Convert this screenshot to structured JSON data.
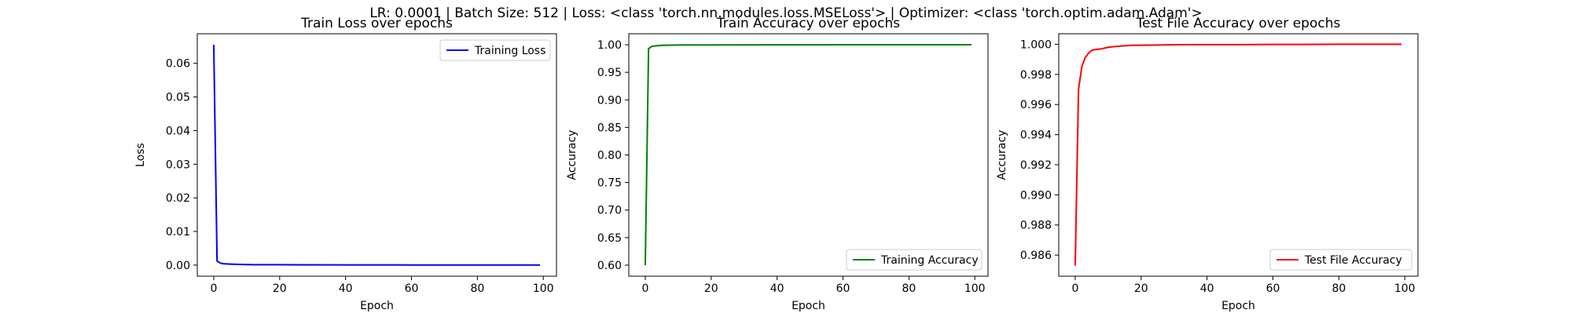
{
  "figure": {
    "suptitle": "LR: 0.0001 | Batch Size: 512 | Loss: <class 'torch.nn.modules.loss.MSELoss'> | Optimizer: <class 'torch.optim.adam.Adam'>"
  },
  "chart_data": [
    {
      "type": "line",
      "title": "Train Loss over epochs",
      "xlabel": "Epoch",
      "ylabel": "Loss",
      "xlim": [
        -5,
        104
      ],
      "ylim": [
        -0.0033,
        0.0688
      ],
      "xticks": [
        0,
        20,
        40,
        60,
        80,
        100
      ],
      "xtick_labels": [
        "0",
        "20",
        "40",
        "60",
        "80",
        "100"
      ],
      "yticks": [
        0,
        0.01,
        0.02,
        0.03,
        0.04,
        0.05,
        0.06
      ],
      "ytick_labels": [
        "0.00",
        "0.01",
        "0.02",
        "0.03",
        "0.04",
        "0.05",
        "0.06"
      ],
      "legend_position": "top-right",
      "grid": false,
      "series": [
        {
          "name": "Training Loss",
          "color": "#0000ff",
          "x": [
            0,
            1,
            2,
            3,
            5,
            8,
            12,
            20,
            40,
            60,
            80,
            99
          ],
          "y": [
            0.0655,
            0.0012,
            0.0006,
            0.0004,
            0.0003,
            0.0002,
            0.0001,
            0.0001,
            5e-05,
            4e-05,
            3e-05,
            3e-05
          ]
        }
      ]
    },
    {
      "type": "line",
      "title": "Train Accuracy over epochs",
      "xlabel": "Epoch",
      "ylabel": "Accuracy",
      "xlim": [
        -5,
        104
      ],
      "ylim": [
        0.58,
        1.02
      ],
      "xticks": [
        0,
        20,
        40,
        60,
        80,
        100
      ],
      "xtick_labels": [
        "0",
        "20",
        "40",
        "60",
        "80",
        "100"
      ],
      "yticks": [
        0.6,
        0.65,
        0.7,
        0.75,
        0.8,
        0.85,
        0.9,
        0.95,
        1.0
      ],
      "ytick_labels": [
        "0.60",
        "0.65",
        "0.70",
        "0.75",
        "0.80",
        "0.85",
        "0.90",
        "0.95",
        "1.00"
      ],
      "legend_position": "bottom-right",
      "grid": false,
      "series": [
        {
          "name": "Training Accuracy",
          "color": "#008000",
          "x": [
            0,
            1,
            2,
            3,
            5,
            10,
            20,
            40,
            60,
            80,
            99
          ],
          "y": [
            0.6,
            0.993,
            0.997,
            0.998,
            0.999,
            0.9995,
            0.9998,
            0.9999,
            1.0,
            1.0,
            1.0
          ]
        }
      ]
    },
    {
      "type": "line",
      "title": "Test File Accuracy over epochs",
      "xlabel": "Epoch",
      "ylabel": "Accuracy",
      "xlim": [
        -5,
        104
      ],
      "ylim": [
        0.9846,
        1.0007
      ],
      "xticks": [
        0,
        20,
        40,
        60,
        80,
        100
      ],
      "xtick_labels": [
        "0",
        "20",
        "40",
        "60",
        "80",
        "100"
      ],
      "yticks": [
        0.986,
        0.988,
        0.99,
        0.992,
        0.994,
        0.996,
        0.998,
        1.0
      ],
      "ytick_labels": [
        "0.986",
        "0.988",
        "0.990",
        "0.992",
        "0.994",
        "0.996",
        "0.998",
        "1.000"
      ],
      "legend_position": "bottom-right",
      "grid": false,
      "series": [
        {
          "name": "Test File Accuracy",
          "color": "#ff0000",
          "x": [
            0,
            1,
            2,
            3,
            4,
            5,
            6,
            8,
            10,
            12,
            15,
            17,
            20,
            25,
            30,
            40,
            50,
            60,
            70,
            80,
            90,
            99
          ],
          "y": [
            0.9853,
            0.997,
            0.9985,
            0.9991,
            0.9994,
            0.9996,
            0.99965,
            0.9997,
            0.9998,
            0.99985,
            0.9999,
            0.99993,
            0.99994,
            0.99995,
            0.99997,
            0.99998,
            0.99998,
            0.99999,
            0.99999,
            1.0,
            1.0,
            1.0
          ]
        }
      ]
    }
  ]
}
